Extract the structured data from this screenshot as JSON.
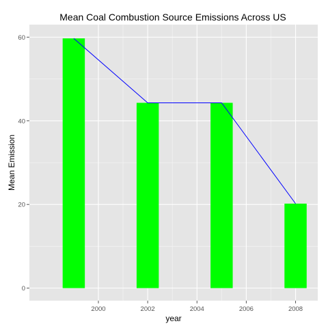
{
  "chart_data": {
    "type": "bar",
    "title": "Mean Coal Combustion Source Emissions Across US",
    "xlabel": "year",
    "ylabel": "Mean Emission",
    "x": [
      1999,
      2002,
      2005,
      2008
    ],
    "values": [
      59.7,
      44.3,
      44.3,
      20.2
    ],
    "xlim": [
      1997.2,
      2008.9
    ],
    "ylim": [
      -3,
      63
    ],
    "xticks": [
      "2000",
      "2002",
      "2004",
      "2006",
      "2008"
    ],
    "yticks": [
      "0",
      "20",
      "40",
      "60"
    ],
    "bar_color": "#00ff00",
    "line_color": "#0000ff",
    "panel_background": "#e5e5e5",
    "grid": true,
    "legend": "none"
  }
}
